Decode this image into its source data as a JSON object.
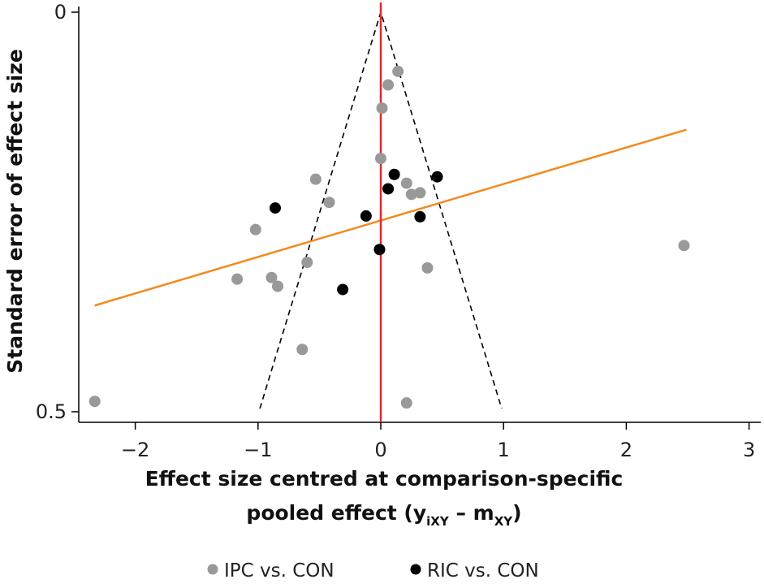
{
  "chart_data": {
    "type": "scatter",
    "title": "",
    "xlabel_line1": "Effect size centred at comparison-specific",
    "xlabel_line2": [
      {
        "text": "pooled effect (y",
        "sub": false
      },
      {
        "text": "iXY",
        "sub": true
      },
      {
        "text": " – m",
        "sub": false
      },
      {
        "text": "XY",
        "sub": true
      },
      {
        "text": ")",
        "sub": false
      }
    ],
    "ylabel": "Standard error of effect size",
    "xlim": [
      -2.47,
      3.09
    ],
    "ylim": [
      0,
      0.5
    ],
    "y_reversed": true,
    "x_ticks": [
      -2,
      -1,
      0,
      1,
      2,
      3
    ],
    "x_tick_labels": [
      "−2",
      "−1",
      "0",
      "1",
      "2",
      "3"
    ],
    "y_ticks": [
      0,
      0.5
    ],
    "y_tick_labels": [
      "0",
      "0.5"
    ],
    "grid": false,
    "legend_position": "bottom",
    "series": [
      {
        "name": "IPC vs. CON",
        "color": "#999999",
        "points": [
          [
            0.14,
            0.074
          ],
          [
            0.06,
            0.091
          ],
          [
            0.01,
            0.12
          ],
          [
            0.0,
            0.183
          ],
          [
            -0.53,
            0.209
          ],
          [
            0.21,
            0.214
          ],
          [
            0.25,
            0.228
          ],
          [
            0.32,
            0.226
          ],
          [
            -0.42,
            0.238
          ],
          [
            -1.02,
            0.272
          ],
          [
            -0.6,
            0.313
          ],
          [
            0.38,
            0.32
          ],
          [
            -1.17,
            0.334
          ],
          [
            -0.89,
            0.332
          ],
          [
            -0.84,
            0.343
          ],
          [
            -0.64,
            0.422
          ],
          [
            -2.33,
            0.487
          ],
          [
            0.21,
            0.489
          ],
          [
            2.47,
            0.292
          ]
        ]
      },
      {
        "name": "RIC vs. CON",
        "color": "#000000",
        "points": [
          [
            0.11,
            0.203
          ],
          [
            0.46,
            0.206
          ],
          [
            0.06,
            0.221
          ],
          [
            -0.86,
            0.245
          ],
          [
            -0.12,
            0.255
          ],
          [
            0.32,
            0.256
          ],
          [
            -0.01,
            0.297
          ],
          [
            -0.31,
            0.347
          ]
        ]
      }
    ],
    "reference_line": {
      "x": 0,
      "color": "#e8262b"
    },
    "funnel": {
      "apex": [
        0,
        0
      ],
      "bottom_se": 0.496,
      "half_width_at_bottom": 0.985,
      "style": "dashed",
      "color": "#000000"
    },
    "regression_line": {
      "color": "#f28a1e",
      "from": [
        -2.33,
        0.367
      ],
      "to": [
        2.49,
        0.147
      ]
    }
  }
}
